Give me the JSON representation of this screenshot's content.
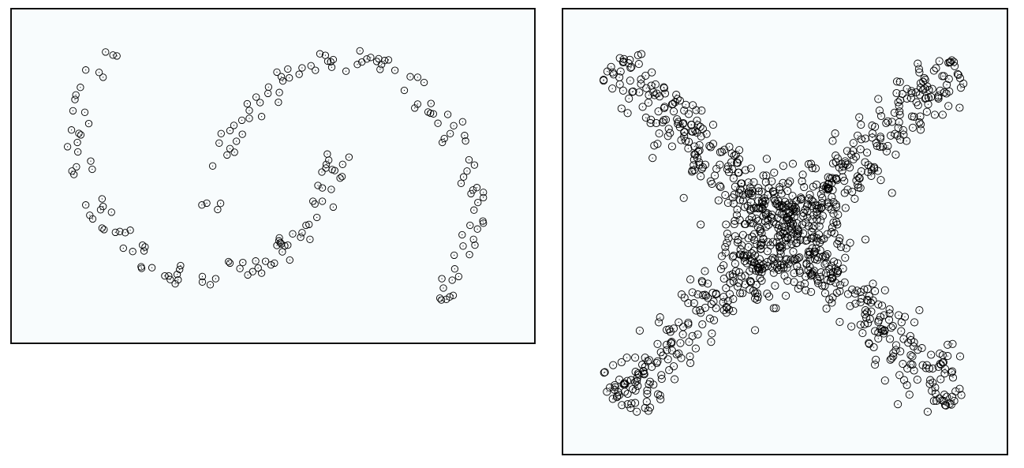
{
  "colors": {
    "plot_background": "#f8fcfd",
    "marker_stroke": "#000000",
    "frame": "#111111"
  },
  "chart_data": [
    {
      "type": "scatter",
      "grid": false,
      "xlim": [
        0,
        100
      ],
      "ylim": [
        0,
        100
      ],
      "marker": "open-circle",
      "series": [
        {
          "description_only": false,
          "points": [
            [
              16.1,
              90.7
            ],
            [
              17.6,
              89.7
            ],
            [
              18.4,
              89.4
            ],
            [
              12.1,
              84.8
            ],
            [
              14.8,
              84.0
            ],
            [
              15.6,
              82.4
            ],
            [
              11.0,
              79.1
            ],
            [
              10.1,
              76.6
            ],
            [
              9.9,
              75.1
            ],
            [
              11.9,
              70.9
            ],
            [
              9.5,
              71.4
            ],
            [
              12.7,
              67.2
            ],
            [
              9.2,
              65.1
            ],
            [
              10.7,
              64.0
            ],
            [
              11.1,
              63.5
            ],
            [
              10.4,
              61.0
            ],
            [
              8.4,
              59.6
            ],
            [
              10.5,
              57.9
            ],
            [
              10.2,
              53.0
            ],
            [
              9.3,
              51.6
            ],
            [
              9.7,
              50.5
            ],
            [
              13.1,
              54.9
            ],
            [
              13.4,
              52.2
            ],
            [
              12.1,
              40.5
            ],
            [
              15.4,
              42.5
            ],
            [
              12.9,
              37.1
            ],
            [
              13.5,
              35.9
            ],
            [
              15.1,
              38.9
            ],
            [
              15.6,
              40.0
            ],
            [
              17.3,
              38.1
            ],
            [
              15.8,
              32.4
            ],
            [
              15.4,
              32.9
            ],
            [
              18.1,
              31.5
            ],
            [
              19.0,
              31.8
            ],
            [
              20.1,
              31.4
            ],
            [
              21.1,
              32.2
            ],
            [
              19.7,
              26.3
            ],
            [
              21.6,
              25.2
            ],
            [
              23.6,
              27.3
            ],
            [
              23.9,
              25.4
            ],
            [
              24.1,
              26.7
            ],
            [
              23.4,
              19.7
            ],
            [
              23.3,
              20.2
            ],
            [
              25.5,
              19.9
            ],
            [
              28.1,
              17.2
            ],
            [
              28.9,
              17.2
            ],
            [
              29.2,
              16.0
            ],
            [
              30.6,
              17.7
            ],
            [
              30.2,
              14.6
            ],
            [
              30.8,
              15.9
            ],
            [
              31.1,
              19.3
            ],
            [
              31.3,
              20.6
            ],
            [
              35.7,
              17.0
            ],
            [
              35.7,
              15.2
            ],
            [
              37.3,
              14.3
            ],
            [
              38.4,
              16.3
            ],
            [
              35.6,
              40.5
            ],
            [
              36.6,
              41.1
            ],
            [
              38.8,
              39.0
            ],
            [
              39.4,
              41.0
            ],
            [
              37.8,
              53.3
            ],
            [
              40.7,
              56.9
            ],
            [
              41.3,
              59.0
            ],
            [
              42.2,
              57.8
            ],
            [
              42.6,
              61.4
            ],
            [
              39.1,
              60.8
            ],
            [
              39.5,
              63.9
            ],
            [
              41.3,
              64.9
            ],
            [
              42.1,
              66.6
            ],
            [
              43.8,
              63.7
            ],
            [
              43.7,
              68.3
            ],
            [
              45.2,
              68.9
            ],
            [
              45.2,
              71.5
            ],
            [
              44.8,
              73.7
            ],
            [
              47.7,
              69.5
            ],
            [
              47.4,
              74.1
            ],
            [
              49.0,
              77.1
            ],
            [
              46.6,
              75.9
            ],
            [
              49.1,
              79.2
            ],
            [
              51.1,
              74.2
            ],
            [
              51.3,
              77.4
            ],
            [
              52.0,
              81.2
            ],
            [
              50.8,
              84.1
            ],
            [
              51.7,
              82.6
            ],
            [
              53.0,
              85.1
            ],
            [
              53.3,
              82.2
            ],
            [
              55.9,
              85.5
            ],
            [
              55.3,
              83.4
            ],
            [
              57.7,
              86.2
            ],
            [
              58.6,
              84.7
            ],
            [
              59.5,
              90.1
            ],
            [
              60.6,
              89.6
            ],
            [
              61.1,
              87.7
            ],
            [
              61.9,
              85.7
            ],
            [
              61.7,
              87.5
            ],
            [
              62.2,
              88.2
            ],
            [
              64.8,
              84.4
            ],
            [
              67.6,
              91.1
            ],
            [
              67.1,
              86.6
            ],
            [
              68.0,
              87.4
            ],
            [
              69.0,
              88.4
            ],
            [
              69.8,
              88.9
            ],
            [
              71.0,
              87.6
            ],
            [
              71.4,
              88.5
            ],
            [
              72.6,
              87.9
            ],
            [
              73.4,
              88.1
            ],
            [
              72.0,
              86.6
            ],
            [
              71.7,
              85.0
            ],
            [
              74.7,
              84.7
            ],
            [
              77.8,
              82.6
            ],
            [
              79.3,
              82.4
            ],
            [
              80.6,
              80.7
            ],
            [
              81.9,
              70.6
            ],
            [
              82.5,
              70.4
            ],
            [
              83.4,
              67.3
            ],
            [
              85.9,
              63.9
            ],
            [
              84.7,
              62.3
            ],
            [
              84.3,
              61.0
            ],
            [
              81.4,
              71.0
            ],
            [
              76.6,
              78.1
            ],
            [
              82.0,
              73.8
            ],
            [
              79.3,
              73.6
            ],
            [
              78.7,
              72.3
            ],
            [
              85.4,
              70.2
            ],
            [
              86.6,
              66.5
            ],
            [
              88.4,
              67.8
            ],
            [
              88.8,
              63.3
            ],
            [
              89.0,
              61.5
            ],
            [
              89.7,
              55.3
            ],
            [
              90.8,
              53.6
            ],
            [
              89.3,
              51.6
            ],
            [
              88.6,
              49.7
            ],
            [
              88.1,
              47.6
            ],
            [
              90.5,
              45.4
            ],
            [
              91.3,
              46.2
            ],
            [
              90.1,
              44.2
            ],
            [
              91.5,
              41.3
            ],
            [
              92.6,
              44.6
            ],
            [
              92.6,
              42.9
            ],
            [
              90.7,
              38.8
            ],
            [
              89.9,
              33.8
            ],
            [
              91.4,
              32.6
            ],
            [
              92.6,
              34.5
            ],
            [
              92.5,
              35.2
            ],
            [
              90.6,
              29.2
            ],
            [
              90.9,
              27.3
            ],
            [
              88.5,
              27.0
            ],
            [
              88.3,
              30.7
            ],
            [
              89.8,
              24.2
            ],
            [
              86.7,
              24.0
            ],
            [
              86.8,
              19.5
            ],
            [
              87.6,
              17.0
            ],
            [
              86.3,
              15.8
            ],
            [
              84.2,
              16.3
            ],
            [
              84.5,
              13.2
            ],
            [
              86.5,
              10.8
            ],
            [
              83.8,
              9.9
            ],
            [
              85.1,
              9.5
            ],
            [
              84.1,
              9.3
            ],
            [
              85.8,
              10.3
            ],
            [
              65.4,
              56.2
            ],
            [
              64.1,
              53.8
            ],
            [
              63.6,
              49.3
            ],
            [
              61.8,
              45.6
            ],
            [
              64.0,
              49.8
            ],
            [
              61.3,
              55.2
            ],
            [
              61.0,
              57.2
            ],
            [
              62.0,
              52.1
            ],
            [
              62.5,
              51.8
            ],
            [
              60.8,
              53.8
            ],
            [
              60.7,
              52.6
            ],
            [
              60.0,
              46.1
            ],
            [
              59.9,
              51.3
            ],
            [
              59.1,
              46.9
            ],
            [
              58.5,
              40.8
            ],
            [
              58.1,
              41.7
            ],
            [
              60.0,
              41.7
            ],
            [
              62.2,
              39.8
            ],
            [
              58.9,
              36.4
            ],
            [
              56.7,
              33.8
            ],
            [
              55.6,
              29.9
            ],
            [
              57.5,
              29.2
            ],
            [
              51.9,
              25.1
            ],
            [
              52.4,
              27.1
            ],
            [
              51.5,
              28.1
            ],
            [
              51.7,
              27.7
            ],
            [
              51.2,
              28.7
            ],
            [
              53.0,
              27.3
            ],
            [
              53.4,
              22.4
            ],
            [
              50.3,
              21.4
            ],
            [
              49.6,
              20.8
            ],
            [
              48.5,
              22.0
            ],
            [
              47.0,
              19.8
            ],
            [
              47.7,
              18.1
            ],
            [
              46.5,
              22.1
            ],
            [
              45.9,
              18.6
            ],
            [
              44.9,
              17.5
            ],
            [
              43.9,
              21.6
            ],
            [
              43.3,
              19.6
            ],
            [
              41.3,
              21.4
            ],
            [
              41.0,
              21.9
            ],
            [
              55.9,
              31.4
            ],
            [
              57.3,
              34.1
            ],
            [
              54.0,
              31.0
            ],
            [
              51.3,
              29.7
            ],
            [
              50.8,
              27.2
            ]
          ]
        }
      ]
    },
    {
      "type": "scatter",
      "grid": false,
      "xlim": [
        0,
        100
      ],
      "ylim": [
        0,
        100
      ],
      "marker": "open-circle",
      "series": [
        {
          "description_only": false,
          "points": []
        }
      ]
    }
  ]
}
